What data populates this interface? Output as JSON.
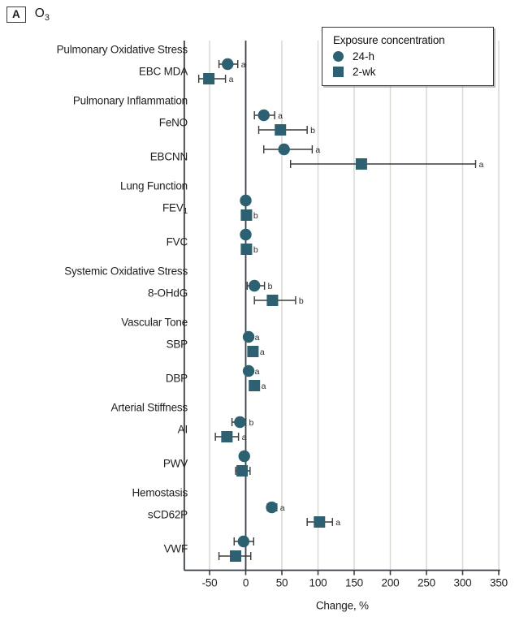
{
  "header": {
    "panel_label": "A",
    "gas": "O",
    "gas_sub": "3"
  },
  "legend": {
    "title": "Exposure concentration",
    "items": [
      {
        "label": "24-h",
        "marker": "circle"
      },
      {
        "label": "2-wk",
        "marker": "square"
      }
    ]
  },
  "colors": {
    "marker": "#2d6070",
    "grid": "#dadad2",
    "dark_line": "#3a4045",
    "error_bar": "#3b3b3b",
    "text": "#1f1f1f",
    "sig_text": "#2b2b2b"
  },
  "chart_data": {
    "type": "forest-dot-plot",
    "xlabel": "Change, %",
    "x_ticks": [
      -50,
      0,
      50,
      100,
      150,
      200,
      250,
      300,
      350
    ],
    "x_domain": [
      -85,
      352
    ],
    "grid": "vertical-lines",
    "legend_position": "top-right",
    "series_names": [
      "24-h",
      "2-wk"
    ],
    "groups": [
      {
        "header": "Pulmonary Oxidative Stress",
        "rows": [
          {
            "label": "EBC MDA",
            "sub": "",
            "points": [
              {
                "series": "24-h",
                "marker": "circle",
                "value": -25,
                "lo": -37,
                "hi": -11,
                "sig": "a"
              },
              {
                "series": "2-wk",
                "marker": "square",
                "value": -51,
                "lo": -65,
                "hi": -28,
                "sig": "a"
              }
            ]
          }
        ]
      },
      {
        "header": "Pulmonary Inflammation",
        "rows": [
          {
            "label": "FeNO",
            "sub": "",
            "points": [
              {
                "series": "24-h",
                "marker": "circle",
                "value": 25,
                "lo": 12,
                "hi": 40,
                "sig": "a"
              },
              {
                "series": "2-wk",
                "marker": "square",
                "value": 48,
                "lo": 18,
                "hi": 85,
                "sig": "b"
              }
            ]
          },
          {
            "label": "EBCNN",
            "sub": "",
            "points": [
              {
                "series": "24-h",
                "marker": "circle",
                "value": 53,
                "lo": 25,
                "hi": 92,
                "sig": "a"
              },
              {
                "series": "2-wk",
                "marker": "square",
                "value": 160,
                "lo": 62,
                "hi": 318,
                "sig": "a"
              }
            ]
          }
        ]
      },
      {
        "header": "Lung Function",
        "rows": [
          {
            "label": "FEV",
            "sub": "1",
            "points": [
              {
                "series": "24-h",
                "marker": "circle",
                "value": 0,
                "lo": -3,
                "hi": 3,
                "sig": ""
              },
              {
                "series": "2-wk",
                "marker": "square",
                "value": 1,
                "lo": -4,
                "hi": 6,
                "sig": "b"
              }
            ]
          },
          {
            "label": "FVC",
            "sub": "",
            "points": [
              {
                "series": "24-h",
                "marker": "circle",
                "value": 0,
                "lo": -3,
                "hi": 3,
                "sig": ""
              },
              {
                "series": "2-wk",
                "marker": "square",
                "value": 1,
                "lo": -4,
                "hi": 6,
                "sig": "b"
              }
            ]
          }
        ]
      },
      {
        "header": "Systemic Oxidative Stress",
        "rows": [
          {
            "label": "8-OHdG",
            "sub": "",
            "points": [
              {
                "series": "24-h",
                "marker": "circle",
                "value": 12,
                "lo": 2,
                "hi": 26,
                "sig": "b"
              },
              {
                "series": "2-wk",
                "marker": "square",
                "value": 37,
                "lo": 12,
                "hi": 69,
                "sig": "b"
              }
            ]
          }
        ]
      },
      {
        "header": "Vascular Tone",
        "rows": [
          {
            "label": "SBP",
            "sub": "",
            "points": [
              {
                "series": "24-h",
                "marker": "circle",
                "value": 4,
                "lo": 1,
                "hi": 8,
                "sig": "a"
              },
              {
                "series": "2-wk",
                "marker": "square",
                "value": 10,
                "lo": 5,
                "hi": 15,
                "sig": "a"
              }
            ]
          },
          {
            "label": "DBP",
            "sub": "",
            "points": [
              {
                "series": "24-h",
                "marker": "circle",
                "value": 4,
                "lo": 1,
                "hi": 8,
                "sig": "a"
              },
              {
                "series": "2-wk",
                "marker": "square",
                "value": 12,
                "lo": 6,
                "hi": 17,
                "sig": "a"
              }
            ]
          }
        ]
      },
      {
        "header": "Arterial Stiffness",
        "rows": [
          {
            "label": "AI",
            "sub": "",
            "points": [
              {
                "series": "24-h",
                "marker": "circle",
                "value": -8,
                "lo": -19,
                "hi": 0,
                "sig": "b"
              },
              {
                "series": "2-wk",
                "marker": "square",
                "value": -26,
                "lo": -42,
                "hi": -10,
                "sig": "a"
              }
            ]
          },
          {
            "label": "PWV",
            "sub": "",
            "points": [
              {
                "series": "24-h",
                "marker": "circle",
                "value": -2,
                "lo": -6,
                "hi": 2,
                "sig": ""
              },
              {
                "series": "2-wk",
                "marker": "square",
                "value": -5,
                "lo": -14,
                "hi": 6,
                "sig": ""
              }
            ]
          }
        ]
      },
      {
        "header": "Hemostasis",
        "rows": [
          {
            "label": "sCD62P",
            "sub": "",
            "points": [
              {
                "series": "24-h",
                "marker": "circle",
                "value": 36,
                "lo": 30,
                "hi": 43,
                "sig": "a"
              },
              {
                "series": "2-wk",
                "marker": "square",
                "value": 102,
                "lo": 85,
                "hi": 120,
                "sig": "a"
              }
            ]
          },
          {
            "label": "VWF",
            "sub": "",
            "points": [
              {
                "series": "24-h",
                "marker": "circle",
                "value": -3,
                "lo": -16,
                "hi": 11,
                "sig": ""
              },
              {
                "series": "2-wk",
                "marker": "square",
                "value": -14,
                "lo": -37,
                "hi": 7,
                "sig": ""
              }
            ]
          }
        ]
      }
    ]
  }
}
